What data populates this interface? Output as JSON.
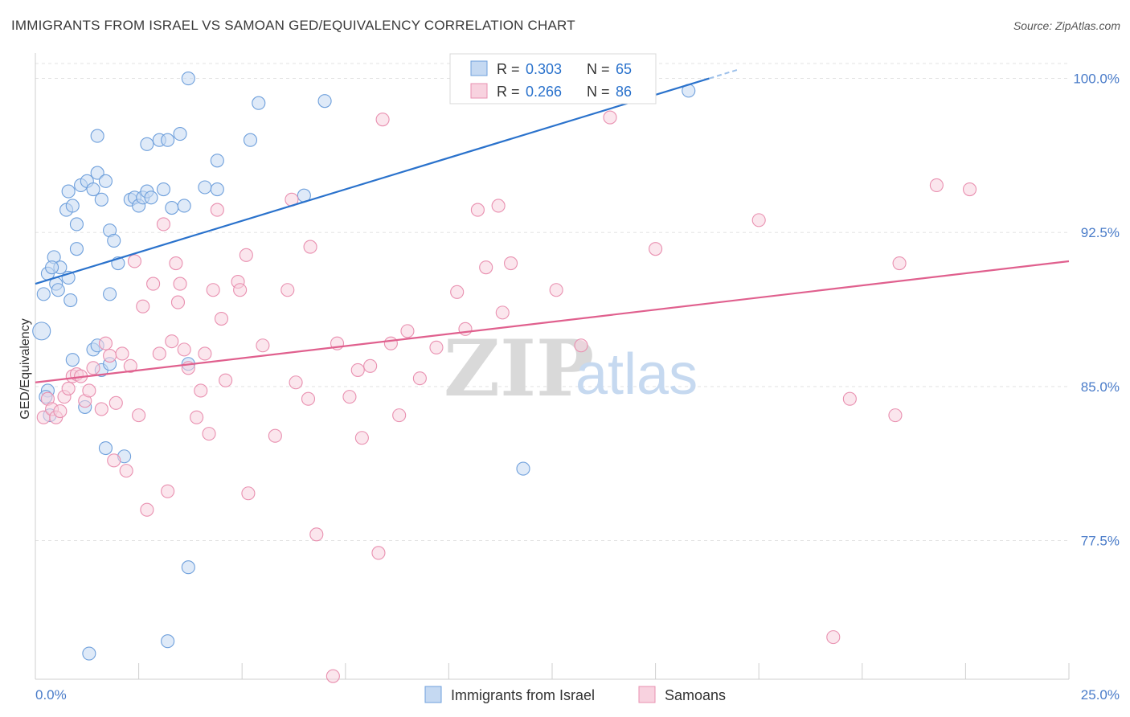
{
  "title": "IMMIGRANTS FROM ISRAEL VS SAMOAN GED/EQUIVALENCY CORRELATION CHART",
  "source": "Source: ZipAtlas.com",
  "watermark": {
    "zip": "ZIP",
    "atlas": "atlas"
  },
  "chart_data": {
    "type": "scatter",
    "ylabel": "GED/Equivalency",
    "xlim": [
      0,
      25
    ],
    "ylim": [
      70.75,
      101.0
    ],
    "x_tick_labels": [
      {
        "value": 0,
        "label": "0.0%"
      },
      {
        "value": 25,
        "label": "25.0%"
      }
    ],
    "y_ticks": [
      {
        "value": 77.5,
        "label": "77.5%"
      },
      {
        "value": 85.0,
        "label": "85.0%"
      },
      {
        "value": 92.5,
        "label": "92.5%"
      },
      {
        "value": 100.0,
        "label": "100.0%"
      }
    ],
    "grid": true,
    "legend_position": "bottom",
    "stats": [
      {
        "r_label": "R = ",
        "r": "0.303",
        "n_label": "N = ",
        "n": "65"
      },
      {
        "r_label": "R = ",
        "r": "0.266",
        "n_label": "N = ",
        "n": "86"
      }
    ],
    "series": [
      {
        "name": "Immigrants from Israel",
        "color": "#6fa0dc",
        "fill": "#c5d9f2",
        "line_color": "#2a72cc",
        "trend": {
          "x0": 0.0,
          "y0": 90.0,
          "x1": 16.3,
          "y1": 100.0,
          "dash_to_x": 17.0
        },
        "points": [
          [
            0.15,
            87.7
          ],
          [
            0.3,
            84.8
          ],
          [
            0.35,
            83.6
          ],
          [
            0.2,
            89.5
          ],
          [
            0.3,
            90.5
          ],
          [
            0.45,
            91.3
          ],
          [
            0.5,
            90.0
          ],
          [
            0.55,
            89.7
          ],
          [
            0.6,
            90.8
          ],
          [
            0.8,
            90.3
          ],
          [
            0.85,
            89.2
          ],
          [
            0.4,
            90.8
          ],
          [
            0.75,
            93.6
          ],
          [
            0.9,
            93.8
          ],
          [
            1.0,
            92.9
          ],
          [
            1.1,
            94.8
          ],
          [
            1.25,
            95.0
          ],
          [
            1.4,
            94.6
          ],
          [
            1.5,
            95.4
          ],
          [
            1.6,
            94.1
          ],
          [
            1.7,
            95.0
          ],
          [
            0.8,
            94.5
          ],
          [
            1.0,
            91.7
          ],
          [
            1.5,
            97.2
          ],
          [
            1.8,
            92.6
          ],
          [
            1.9,
            92.1
          ],
          [
            2.3,
            94.1
          ],
          [
            2.4,
            94.2
          ],
          [
            2.5,
            93.8
          ],
          [
            2.6,
            94.2
          ],
          [
            2.7,
            94.5
          ],
          [
            2.8,
            94.2
          ],
          [
            2.7,
            96.8
          ],
          [
            3.0,
            97.0
          ],
          [
            3.1,
            94.6
          ],
          [
            3.2,
            97.0
          ],
          [
            3.3,
            93.7
          ],
          [
            3.5,
            97.3
          ],
          [
            3.6,
            93.8
          ],
          [
            3.7,
            100.0
          ],
          [
            4.1,
            94.7
          ],
          [
            4.4,
            96.0
          ],
          [
            4.4,
            94.6
          ],
          [
            5.2,
            97.0
          ],
          [
            5.4,
            98.8
          ],
          [
            6.5,
            94.3
          ],
          [
            7.0,
            98.9
          ],
          [
            10.4,
            100.0
          ],
          [
            15.8,
            99.4
          ],
          [
            11.8,
            81.0
          ],
          [
            1.4,
            86.8
          ],
          [
            1.5,
            87.0
          ],
          [
            1.6,
            85.8
          ],
          [
            1.8,
            86.1
          ],
          [
            2.15,
            81.6
          ],
          [
            3.7,
            86.1
          ],
          [
            3.7,
            76.2
          ],
          [
            3.2,
            72.6
          ],
          [
            1.3,
            72.0
          ],
          [
            1.7,
            82.0
          ],
          [
            1.8,
            89.5
          ],
          [
            0.9,
            86.3
          ],
          [
            0.25,
            84.5
          ],
          [
            1.2,
            84.0
          ],
          [
            2.0,
            91.0
          ]
        ]
      },
      {
        "name": "Samoans",
        "color": "#e990b0",
        "fill": "#f8d2df",
        "line_color": "#e0608e",
        "trend": {
          "x0": 0.0,
          "y0": 85.2,
          "x1": 25.0,
          "y1": 91.1
        },
        "points": [
          [
            0.2,
            83.5
          ],
          [
            0.3,
            84.4
          ],
          [
            0.4,
            83.9
          ],
          [
            0.5,
            83.5
          ],
          [
            0.6,
            83.8
          ],
          [
            0.7,
            84.5
          ],
          [
            0.8,
            84.9
          ],
          [
            0.9,
            85.5
          ],
          [
            1.0,
            85.6
          ],
          [
            1.1,
            85.5
          ],
          [
            1.2,
            84.3
          ],
          [
            1.3,
            84.8
          ],
          [
            1.4,
            85.9
          ],
          [
            1.6,
            83.9
          ],
          [
            1.7,
            87.1
          ],
          [
            1.8,
            86.5
          ],
          [
            1.9,
            81.4
          ],
          [
            1.95,
            84.2
          ],
          [
            2.1,
            86.6
          ],
          [
            2.2,
            80.9
          ],
          [
            2.3,
            86.0
          ],
          [
            2.4,
            91.1
          ],
          [
            2.5,
            83.6
          ],
          [
            2.6,
            88.9
          ],
          [
            2.7,
            79.0
          ],
          [
            2.85,
            90.0
          ],
          [
            3.0,
            86.6
          ],
          [
            3.1,
            92.9
          ],
          [
            3.2,
            79.9
          ],
          [
            3.3,
            87.2
          ],
          [
            3.4,
            91.0
          ],
          [
            3.45,
            89.1
          ],
          [
            3.5,
            90.0
          ],
          [
            3.6,
            86.8
          ],
          [
            3.7,
            85.9
          ],
          [
            3.9,
            83.5
          ],
          [
            4.0,
            84.8
          ],
          [
            4.1,
            86.6
          ],
          [
            4.2,
            82.7
          ],
          [
            4.3,
            89.7
          ],
          [
            4.4,
            93.6
          ],
          [
            4.5,
            88.3
          ],
          [
            4.6,
            85.3
          ],
          [
            4.9,
            90.1
          ],
          [
            4.95,
            89.7
          ],
          [
            5.1,
            91.4
          ],
          [
            5.15,
            79.8
          ],
          [
            5.5,
            87.0
          ],
          [
            5.8,
            82.6
          ],
          [
            6.1,
            89.7
          ],
          [
            6.2,
            94.1
          ],
          [
            6.3,
            85.2
          ],
          [
            6.6,
            84.4
          ],
          [
            6.65,
            91.8
          ],
          [
            6.8,
            77.8
          ],
          [
            7.2,
            70.9
          ],
          [
            7.3,
            87.1
          ],
          [
            7.6,
            84.5
          ],
          [
            7.8,
            85.8
          ],
          [
            7.9,
            82.5
          ],
          [
            8.1,
            86.0
          ],
          [
            8.3,
            76.9
          ],
          [
            8.4,
            98.0
          ],
          [
            8.6,
            87.1
          ],
          [
            8.8,
            83.6
          ],
          [
            9.0,
            87.7
          ],
          [
            9.3,
            85.4
          ],
          [
            9.7,
            86.9
          ],
          [
            10.2,
            89.6
          ],
          [
            10.4,
            87.8
          ],
          [
            10.7,
            93.6
          ],
          [
            10.9,
            90.8
          ],
          [
            11.2,
            93.8
          ],
          [
            11.3,
            88.6
          ],
          [
            11.5,
            91.0
          ],
          [
            12.6,
            89.7
          ],
          [
            13.2,
            87.0
          ],
          [
            13.9,
            98.1
          ],
          [
            15.0,
            91.7
          ],
          [
            17.5,
            93.1
          ],
          [
            19.3,
            72.8
          ],
          [
            19.7,
            84.4
          ],
          [
            20.8,
            83.6
          ],
          [
            20.9,
            91.0
          ],
          [
            21.8,
            94.8
          ],
          [
            22.6,
            94.6
          ]
        ]
      }
    ]
  }
}
